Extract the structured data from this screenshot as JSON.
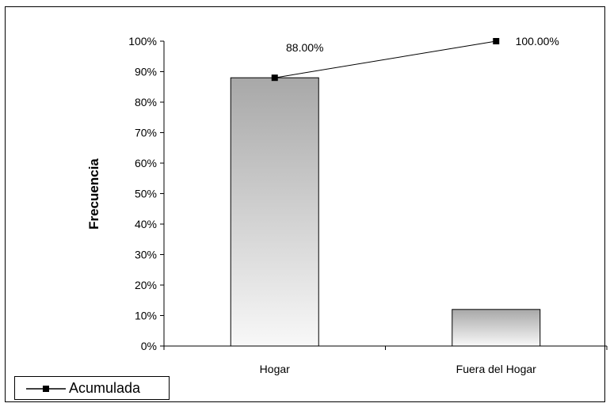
{
  "chart_data": {
    "type": "bar",
    "categories": [
      "Hogar",
      "Fuera del Hogar"
    ],
    "values": [
      88,
      12
    ],
    "line_series": {
      "name": "Acumulada",
      "values": [
        88,
        100
      ],
      "labels": [
        "88.00%",
        "100.00%"
      ]
    },
    "ylabel": "Frecuencia",
    "ylim": [
      0,
      100
    ],
    "y_ticks": [
      "0%",
      "10%",
      "20%",
      "30%",
      "40%",
      "50%",
      "60%",
      "70%",
      "80%",
      "90%",
      "100%"
    ],
    "legend": {
      "placement": "bottom-left",
      "entries": [
        "Acumulada"
      ]
    },
    "grid": false,
    "colors": {
      "bar_top": "#a8a8a8",
      "bar_bottom": "#f8f8f8",
      "line": "#000000",
      "border": "#000000"
    }
  }
}
